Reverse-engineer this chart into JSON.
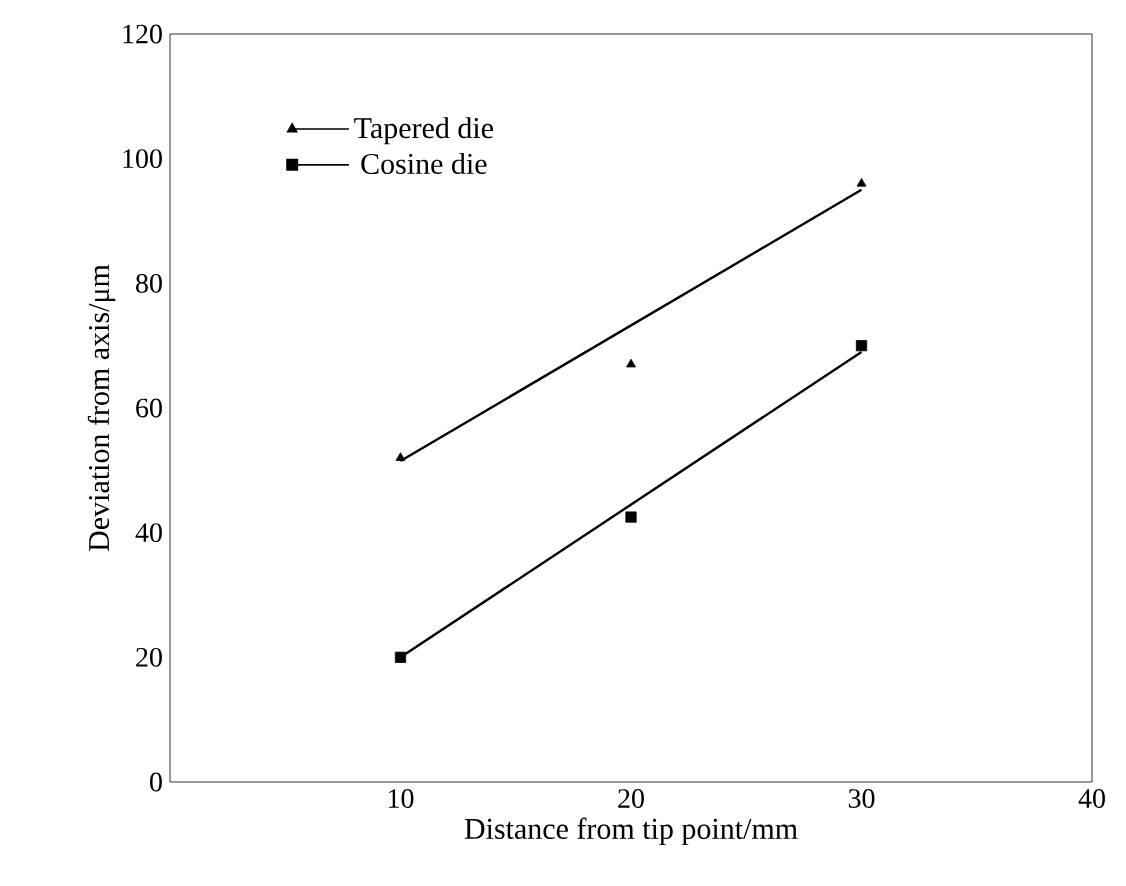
{
  "chart_data": {
    "type": "scatter",
    "xlabel": "Distance from tip point/mm",
    "ylabel": "Deviation from axis/μm",
    "xlim": [
      0,
      40
    ],
    "ylim": [
      0,
      120
    ],
    "xticks": [
      10,
      20,
      30,
      40
    ],
    "yticks": [
      0,
      20,
      40,
      60,
      80,
      100,
      120
    ],
    "grid": false,
    "legend": "top left",
    "series": [
      {
        "name": "Tapered die",
        "marker": "triangle",
        "color": "#000000",
        "x": [
          10,
          20,
          30
        ],
        "values": [
          52,
          67,
          96
        ]
      },
      {
        "name": "Cosine die",
        "marker": "square",
        "color": "#000000",
        "x": [
          10,
          20,
          30
        ],
        "values": [
          20,
          42.5,
          70
        ]
      },
      {
        "type": "line",
        "color": "#000000",
        "x": [
          10,
          30
        ],
        "values": [
          51.5,
          95
        ]
      },
      {
        "type": "line",
        "color": "#000000",
        "x": [
          10,
          30
        ],
        "values": [
          20,
          69
        ]
      }
    ]
  }
}
